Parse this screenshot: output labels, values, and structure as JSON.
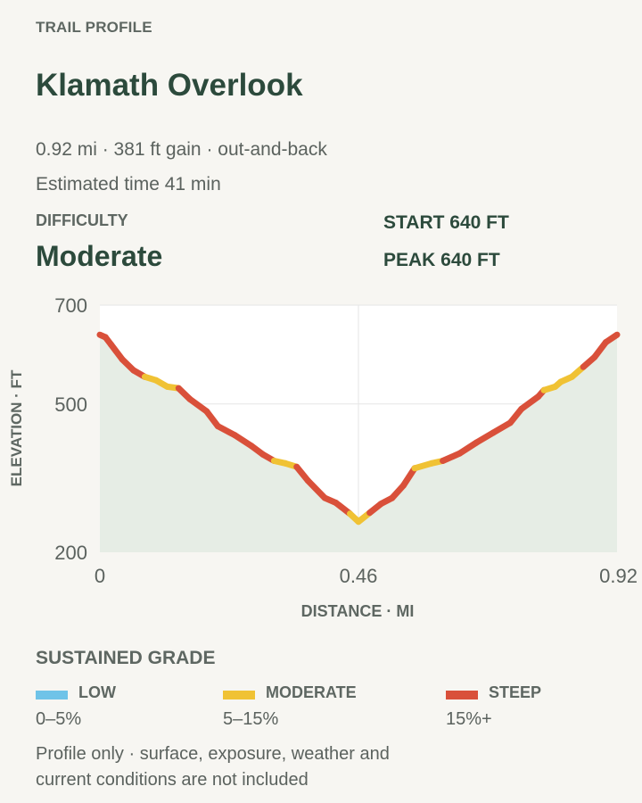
{
  "header": {
    "eyebrow": "TRAIL PROFILE",
    "title": "Klamath Overlook",
    "summary": "0.92 mi · 381 ft gain · out-and-back",
    "time": "Estimated time 41 min"
  },
  "difficulty": {
    "label": "DIFFICULTY",
    "value": "Moderate"
  },
  "stats": {
    "start": "START 640 FT",
    "peak": "PEAK 640 FT"
  },
  "chart_data": {
    "type": "line",
    "title": "",
    "xlabel": "DISTANCE · MI",
    "ylabel": "ELEVATION · FT",
    "xlim": [
      0,
      0.92
    ],
    "ylim": [
      200,
      700
    ],
    "x_ticks": [
      "0",
      "0.46",
      "0.92"
    ],
    "x_tick_values": [
      0,
      0.46,
      0.92
    ],
    "y_ticks": [
      "700",
      "500",
      "200"
    ],
    "y_tick_values": [
      700,
      500,
      200
    ],
    "grid": true,
    "series": [
      {
        "points": [
          {
            "x": 0.0,
            "y": 640,
            "grade": "steep"
          },
          {
            "x": 0.01,
            "y": 635,
            "grade": "steep"
          },
          {
            "x": 0.02,
            "y": 620,
            "grade": "steep"
          },
          {
            "x": 0.04,
            "y": 590,
            "grade": "steep"
          },
          {
            "x": 0.06,
            "y": 568,
            "grade": "steep"
          },
          {
            "x": 0.08,
            "y": 555,
            "grade": "moderate"
          },
          {
            "x": 0.1,
            "y": 548,
            "grade": "moderate"
          },
          {
            "x": 0.12,
            "y": 535,
            "grade": "moderate"
          },
          {
            "x": 0.14,
            "y": 532,
            "grade": "steep"
          },
          {
            "x": 0.16,
            "y": 510,
            "grade": "steep"
          },
          {
            "x": 0.19,
            "y": 485,
            "grade": "steep"
          },
          {
            "x": 0.21,
            "y": 455,
            "grade": "steep"
          },
          {
            "x": 0.24,
            "y": 437,
            "grade": "steep"
          },
          {
            "x": 0.27,
            "y": 415,
            "grade": "steep"
          },
          {
            "x": 0.29,
            "y": 398,
            "grade": "steep"
          },
          {
            "x": 0.31,
            "y": 385,
            "grade": "moderate"
          },
          {
            "x": 0.33,
            "y": 380,
            "grade": "moderate"
          },
          {
            "x": 0.35,
            "y": 373,
            "grade": "steep"
          },
          {
            "x": 0.37,
            "y": 345,
            "grade": "steep"
          },
          {
            "x": 0.4,
            "y": 310,
            "grade": "steep"
          },
          {
            "x": 0.42,
            "y": 300,
            "grade": "steep"
          },
          {
            "x": 0.445,
            "y": 278,
            "grade": "moderate"
          },
          {
            "x": 0.46,
            "y": 262,
            "grade": "moderate"
          },
          {
            "x": 0.48,
            "y": 280,
            "grade": "steep"
          },
          {
            "x": 0.5,
            "y": 298,
            "grade": "steep"
          },
          {
            "x": 0.52,
            "y": 310,
            "grade": "steep"
          },
          {
            "x": 0.54,
            "y": 335,
            "grade": "steep"
          },
          {
            "x": 0.56,
            "y": 370,
            "grade": "moderate"
          },
          {
            "x": 0.59,
            "y": 380,
            "grade": "moderate"
          },
          {
            "x": 0.61,
            "y": 385,
            "grade": "steep"
          },
          {
            "x": 0.64,
            "y": 400,
            "grade": "steep"
          },
          {
            "x": 0.67,
            "y": 422,
            "grade": "steep"
          },
          {
            "x": 0.7,
            "y": 442,
            "grade": "steep"
          },
          {
            "x": 0.73,
            "y": 462,
            "grade": "steep"
          },
          {
            "x": 0.75,
            "y": 490,
            "grade": "steep"
          },
          {
            "x": 0.78,
            "y": 515,
            "grade": "steep"
          },
          {
            "x": 0.79,
            "y": 528,
            "grade": "moderate"
          },
          {
            "x": 0.81,
            "y": 535,
            "grade": "moderate"
          },
          {
            "x": 0.82,
            "y": 545,
            "grade": "moderate"
          },
          {
            "x": 0.84,
            "y": 555,
            "grade": "moderate"
          },
          {
            "x": 0.86,
            "y": 575,
            "grade": "steep"
          },
          {
            "x": 0.88,
            "y": 595,
            "grade": "steep"
          },
          {
            "x": 0.9,
            "y": 625,
            "grade": "steep"
          },
          {
            "x": 0.92,
            "y": 640,
            "grade": "steep"
          }
        ]
      }
    ]
  },
  "legend": {
    "title": "SUSTAINED GRADE",
    "items": [
      {
        "key": "low",
        "label": "LOW",
        "range": "0–5%",
        "color": "#6fc3e8"
      },
      {
        "key": "moderate",
        "label": "MODERATE",
        "range": "5–15%",
        "color": "#f0c234"
      },
      {
        "key": "steep",
        "label": "STEEP",
        "range": "15%+",
        "color": "#d9503a"
      }
    ]
  },
  "colors": {
    "fill": "#e6ede5",
    "plot_bg": "#ffffff",
    "grid": "#e6e6e6"
  },
  "footnote": "Profile only · surface, exposure, weather and current conditions are not included"
}
